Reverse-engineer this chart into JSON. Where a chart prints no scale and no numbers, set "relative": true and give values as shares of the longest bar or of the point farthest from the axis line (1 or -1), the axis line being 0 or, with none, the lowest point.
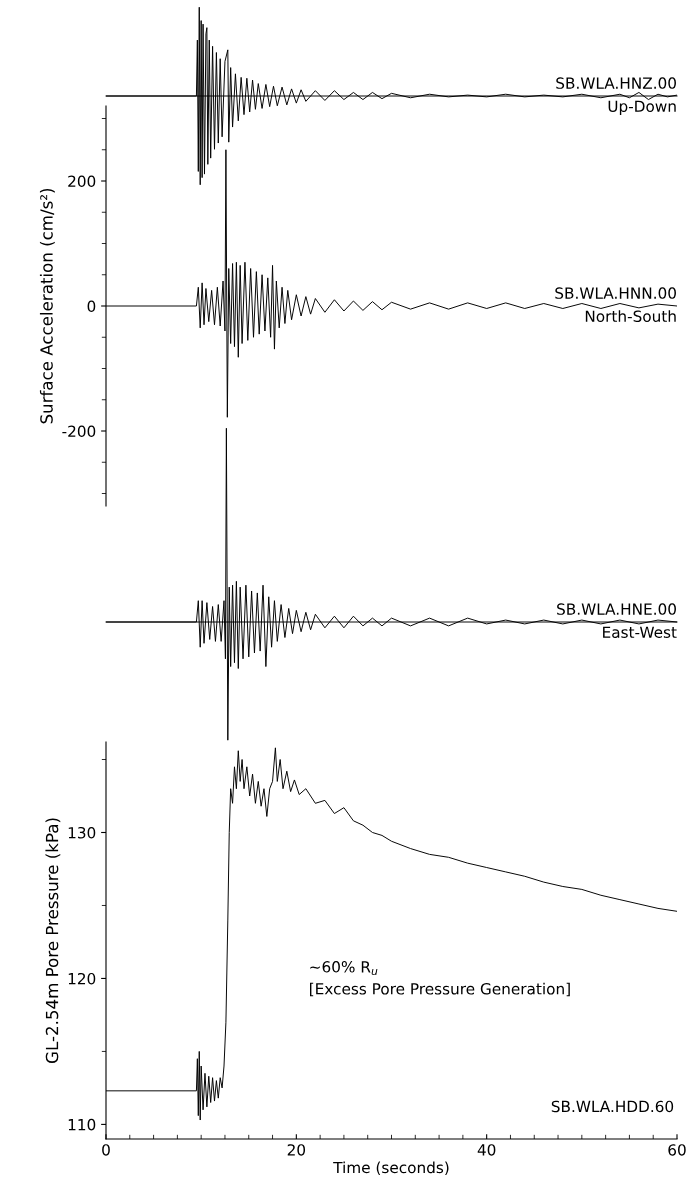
{
  "chart_data": [
    {
      "type": "line",
      "xlim": [
        0,
        60
      ],
      "relative": true,
      "tick_labels": false,
      "annotations": [
        "SB.WLA.HNZ.00",
        "Up-Down"
      ],
      "series": [
        {
          "color": "#000000",
          "x": [
            0,
            9.5,
            9.6,
            9.7,
            9.8,
            9.9,
            10.0,
            10.1,
            10.2,
            10.35,
            10.5,
            10.6,
            10.7,
            10.85,
            11.0,
            11.2,
            11.4,
            11.6,
            11.8,
            12.0,
            12.2,
            12.5,
            12.8,
            12.9,
            13.1,
            13.3,
            13.6,
            13.9,
            14.2,
            14.5,
            14.8,
            15.1,
            15.4,
            15.7,
            16.0,
            16.4,
            16.8,
            17.2,
            17.6,
            18.0,
            18.5,
            19.0,
            19.5,
            20.0,
            20.5,
            21,
            22,
            23,
            24,
            25,
            26,
            27,
            28,
            29,
            30,
            32,
            34,
            36,
            38,
            40,
            42,
            44,
            46,
            48,
            50,
            52,
            54,
            55,
            56,
            57,
            58,
            59,
            60
          ],
          "values": [
            0,
            0,
            0.63,
            -0.85,
            1,
            -1,
            0.85,
            -0.92,
            0.81,
            -0.88,
            0.7,
            0.77,
            -0.77,
            0.63,
            -0.7,
            0.56,
            -0.6,
            0.49,
            -0.53,
            0.42,
            -0.46,
            0.39,
            0.52,
            -0.52,
            0.32,
            -0.35,
            0.25,
            -0.28,
            0.21,
            -0.21,
            0.2,
            -0.18,
            0.18,
            -0.15,
            0.14,
            -0.14,
            0.13,
            -0.12,
            0.11,
            -0.11,
            0.1,
            -0.1,
            0.08,
            -0.08,
            0.07,
            -0.06,
            0.06,
            -0.05,
            0.06,
            -0.04,
            0.04,
            -0.04,
            0.04,
            -0.03,
            0.03,
            -0.02,
            0.02,
            -0.01,
            0.01,
            -0.01,
            0.02,
            -0.01,
            0.01,
            -0.01,
            0.02,
            -0.02,
            0.02,
            -0.02,
            0.04,
            -0.04,
            0.02,
            -0.01,
            0.01
          ]
        }
      ]
    },
    {
      "type": "line",
      "xlim": [
        0,
        60
      ],
      "ylim": [
        -320,
        320
      ],
      "tick_labels": "y",
      "ylabel": "Surface Acceleration (cm/s²)",
      "yticks": [
        {
          "value": -300,
          "label": null
        },
        {
          "value": -250,
          "label": null
        },
        -200,
        {
          "value": -150,
          "label": null
        },
        {
          "value": -100,
          "label": null
        },
        {
          "value": -50,
          "label": null
        },
        0,
        {
          "value": 50,
          "label": null
        },
        {
          "value": 100,
          "label": null
        },
        {
          "value": 150,
          "label": null
        },
        200,
        {
          "value": 250,
          "label": null
        },
        {
          "value": 300,
          "label": null
        }
      ],
      "annotations": [
        "SB.WLA.HNN.00",
        "North-South"
      ],
      "series": [
        {
          "color": "#000000",
          "x": [
            0,
            9.5,
            9.7,
            9.9,
            10.1,
            10.3,
            10.5,
            10.8,
            11.1,
            11.4,
            11.7,
            12.0,
            12.3,
            12.5,
            12.6,
            12.75,
            12.9,
            13.1,
            13.3,
            13.5,
            13.7,
            13.9,
            14.1,
            14.3,
            14.6,
            14.9,
            15.2,
            15.5,
            15.8,
            16.1,
            16.4,
            16.7,
            17.0,
            17.3,
            17.5,
            17.7,
            17.9,
            18.2,
            18.5,
            18.8,
            19.1,
            19.5,
            20,
            20.5,
            21,
            21.5,
            22,
            23,
            24,
            25,
            26,
            27,
            28,
            29,
            30,
            32,
            34,
            36,
            38,
            40,
            42,
            44,
            46,
            48,
            50,
            52,
            54,
            56,
            58,
            60
          ],
          "values": [
            0,
            0,
            30,
            -35,
            37,
            -30,
            28,
            -25,
            25,
            -30,
            30,
            -32,
            40,
            -40,
            250,
            -178,
            60,
            -60,
            68,
            -65,
            70,
            -82,
            65,
            -60,
            70,
            -55,
            60,
            -50,
            55,
            -45,
            50,
            -40,
            45,
            -50,
            65,
            -69,
            40,
            -35,
            30,
            -28,
            25,
            -22,
            18,
            -16,
            15,
            -13,
            12,
            -10,
            10,
            -8,
            8,
            -7,
            7,
            -6,
            6,
            -5,
            5,
            -5,
            5,
            -4,
            5,
            -4,
            4,
            -4,
            4,
            -4,
            4,
            -3,
            3,
            0
          ]
        }
      ]
    },
    {
      "type": "line",
      "xlim": [
        0,
        60
      ],
      "relative": true,
      "tick_labels": false,
      "annotations": [
        "SB.WLA.HNE.00",
        "East-West"
      ],
      "series": [
        {
          "color": "#000000",
          "x": [
            0,
            9.5,
            9.7,
            9.9,
            10.1,
            10.3,
            10.6,
            10.9,
            11.2,
            11.5,
            11.8,
            12.1,
            12.4,
            12.55,
            12.65,
            12.8,
            12.95,
            13.1,
            13.3,
            13.5,
            13.7,
            13.9,
            14.1,
            14.4,
            14.7,
            15.0,
            15.3,
            15.6,
            15.9,
            16.2,
            16.5,
            16.8,
            17.1,
            17.4,
            17.7,
            18.0,
            18.4,
            18.8,
            19.2,
            19.6,
            20,
            20.5,
            21,
            21.5,
            22,
            23,
            24,
            25,
            26,
            27,
            28,
            29,
            30,
            32,
            34,
            36,
            38,
            40,
            42,
            44,
            46,
            48,
            50,
            52,
            54,
            56,
            58,
            60
          ],
          "values": [
            0,
            0,
            0.11,
            -0.13,
            0.11,
            -0.11,
            0.1,
            -0.09,
            0.08,
            -0.1,
            0.09,
            -0.1,
            0.11,
            -0.19,
            1,
            -0.61,
            0.18,
            -0.23,
            0.19,
            -0.21,
            0.21,
            -0.24,
            0.18,
            -0.19,
            0.19,
            -0.18,
            0.16,
            -0.16,
            0.15,
            -0.15,
            0.19,
            -0.23,
            0.13,
            -0.13,
            0.11,
            -0.1,
            0.09,
            -0.08,
            0.07,
            -0.06,
            0.06,
            -0.05,
            0.05,
            -0.04,
            0.04,
            -0.03,
            0.03,
            -0.03,
            0.03,
            -0.02,
            0.02,
            -0.02,
            0.02,
            -0.02,
            0.02,
            -0.02,
            0.02,
            -0.01,
            0.01,
            -0.01,
            0.01,
            -0.01,
            0.01,
            -0.01,
            0.01,
            -0.01,
            0.01,
            0
          ]
        }
      ]
    },
    {
      "type": "line",
      "xlim": [
        0,
        60
      ],
      "ylim": [
        109,
        136.2
      ],
      "xlabel": "Time (seconds)",
      "ylabel": "GL-2.54m Pore Pressure (kPa)",
      "xticks": [
        0,
        {
          "value": 2.5,
          "label": null
        },
        {
          "value": 5,
          "label": null
        },
        {
          "value": 7.5,
          "label": null
        },
        {
          "value": 10,
          "label": null
        },
        {
          "value": 12.5,
          "label": null
        },
        {
          "value": 15,
          "label": null
        },
        {
          "value": 17.5,
          "label": null
        },
        20,
        {
          "value": 22.5,
          "label": null
        },
        {
          "value": 25,
          "label": null
        },
        {
          "value": 27.5,
          "label": null
        },
        {
          "value": 30,
          "label": null
        },
        {
          "value": 32.5,
          "label": null
        },
        {
          "value": 35,
          "label": null
        },
        {
          "value": 37.5,
          "label": null
        },
        40,
        {
          "value": 42.5,
          "label": null
        },
        {
          "value": 45,
          "label": null
        },
        {
          "value": 47.5,
          "label": null
        },
        {
          "value": 50,
          "label": null
        },
        {
          "value": 52.5,
          "label": null
        },
        {
          "value": 55,
          "label": null
        },
        {
          "value": 57.5,
          "label": null
        },
        60
      ],
      "yticks": [
        110,
        {
          "value": 115,
          "label": null
        },
        120,
        {
          "value": 125,
          "label": null
        },
        130,
        {
          "value": 135,
          "label": null
        }
      ],
      "annotations": [
        "~60% R$_{u}$",
        "[Excess Pore Pressure Generation]",
        "SB.WLA.HDD.60"
      ],
      "series": [
        {
          "color": "#000000",
          "x": [
            0,
            9.5,
            9.6,
            9.7,
            9.8,
            9.9,
            10.0,
            10.2,
            10.4,
            10.6,
            10.8,
            11.0,
            11.2,
            11.4,
            11.6,
            11.8,
            12.0,
            12.2,
            12.4,
            12.6,
            12.8,
            12.95,
            13.1,
            13.3,
            13.5,
            13.7,
            13.9,
            14.1,
            14.3,
            14.5,
            14.8,
            15.1,
            15.4,
            15.7,
            16.0,
            16.3,
            16.6,
            16.9,
            17.2,
            17.5,
            17.8,
            18.0,
            18.3,
            18.6,
            19.0,
            19.4,
            19.8,
            20.3,
            21,
            22,
            23,
            24,
            25,
            26,
            27,
            28,
            29,
            30,
            32,
            34,
            36,
            38,
            40,
            42,
            44,
            46,
            48,
            50,
            52,
            54,
            56,
            58,
            60
          ],
          "values": [
            112.3,
            112.3,
            114.5,
            110.6,
            115.0,
            110.3,
            114,
            111,
            113.5,
            111.2,
            113.3,
            111.5,
            113.2,
            111.6,
            113,
            111.8,
            113.2,
            112.5,
            114,
            117,
            124,
            130,
            133,
            132,
            134.5,
            133,
            135.6,
            133.5,
            135,
            133,
            134.5,
            132.5,
            134,
            132,
            133.5,
            131.8,
            133,
            131.1,
            133,
            133.5,
            135.8,
            133.5,
            135,
            133,
            134.2,
            132.8,
            133.6,
            132.6,
            133,
            132,
            132.2,
            131.3,
            131.7,
            130.8,
            130.5,
            130.0,
            129.8,
            129.4,
            128.9,
            128.5,
            128.3,
            127.9,
            127.6,
            127.3,
            127.0,
            126.6,
            126.3,
            126.1,
            125.7,
            125.4,
            125.1,
            124.8,
            124.6
          ]
        }
      ]
    }
  ]
}
